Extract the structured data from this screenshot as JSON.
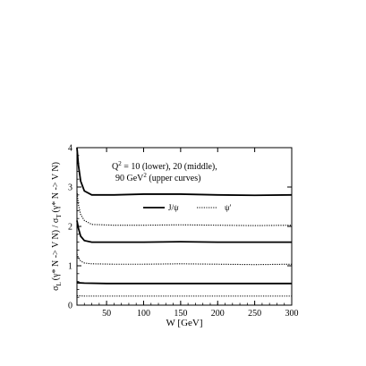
{
  "chart_data": {
    "type": "line",
    "title": "",
    "xlabel": "W  [GeV]",
    "ylabel_parts": {
      "sigma_L": "σ",
      "sub_L": "L",
      "middle": "(γ* N -> V N) / σ",
      "sub_T": "T",
      "tail": "(γ* N -> V N)"
    },
    "xlim": [
      10,
      300
    ],
    "ylim": [
      0,
      4
    ],
    "x_ticks": [
      50,
      100,
      150,
      200,
      250,
      300
    ],
    "y_ticks": [
      0,
      1,
      2,
      3,
      4
    ],
    "annotation": {
      "line1_a": "Q",
      "line1_sup": "2",
      "line1_b": " = 10 (lower), 20 (middle),",
      "line2_a": "90 GeV",
      "line2_sup": "2",
      "line2_b": " (upper curves)"
    },
    "legend": {
      "placement": "upper-right",
      "entries": [
        {
          "label": "J/ψ",
          "style": "solid"
        },
        {
          "label": "ψ'",
          "style": "dotted"
        }
      ]
    },
    "series": [
      {
        "group": "J/ψ, Q² = 90",
        "style": "solid",
        "points": [
          [
            10,
            4.0
          ],
          [
            12,
            3.55
          ],
          [
            15,
            3.15
          ],
          [
            20,
            2.9
          ],
          [
            30,
            2.8
          ],
          [
            60,
            2.8
          ],
          [
            100,
            2.82
          ],
          [
            150,
            2.82
          ],
          [
            200,
            2.8
          ],
          [
            250,
            2.79
          ],
          [
            300,
            2.8
          ]
        ]
      },
      {
        "group": "ψ', Q² = 90",
        "style": "dotted",
        "points": [
          [
            10,
            2.9
          ],
          [
            12,
            2.55
          ],
          [
            15,
            2.3
          ],
          [
            20,
            2.15
          ],
          [
            30,
            2.05
          ],
          [
            60,
            2.03
          ],
          [
            100,
            2.03
          ],
          [
            150,
            2.04
          ],
          [
            200,
            2.03
          ],
          [
            250,
            2.02
          ],
          [
            300,
            2.03
          ]
        ]
      },
      {
        "group": "J/ψ, Q² = 20",
        "style": "solid",
        "points": [
          [
            10,
            2.15
          ],
          [
            12,
            1.95
          ],
          [
            15,
            1.75
          ],
          [
            20,
            1.64
          ],
          [
            30,
            1.6
          ],
          [
            60,
            1.6
          ],
          [
            100,
            1.6
          ],
          [
            150,
            1.61
          ],
          [
            200,
            1.6
          ],
          [
            250,
            1.6
          ],
          [
            300,
            1.6
          ]
        ]
      },
      {
        "group": "ψ', Q² = 20",
        "style": "dotted",
        "points": [
          [
            10,
            1.3
          ],
          [
            12,
            1.2
          ],
          [
            15,
            1.12
          ],
          [
            20,
            1.07
          ],
          [
            30,
            1.05
          ],
          [
            60,
            1.04
          ],
          [
            100,
            1.04
          ],
          [
            150,
            1.05
          ],
          [
            200,
            1.04
          ],
          [
            250,
            1.03
          ],
          [
            300,
            1.04
          ]
        ]
      },
      {
        "group": "J/ψ, Q² = 10",
        "style": "solid",
        "points": [
          [
            10,
            0.57
          ],
          [
            20,
            0.56
          ],
          [
            50,
            0.55
          ],
          [
            100,
            0.55
          ],
          [
            150,
            0.55
          ],
          [
            200,
            0.55
          ],
          [
            250,
            0.55
          ],
          [
            300,
            0.55
          ]
        ]
      },
      {
        "group": "ψ', Q² = 10",
        "style": "dotted",
        "points": [
          [
            10,
            0.24
          ],
          [
            20,
            0.23
          ],
          [
            50,
            0.23
          ],
          [
            100,
            0.23
          ],
          [
            150,
            0.23
          ],
          [
            200,
            0.23
          ],
          [
            250,
            0.23
          ],
          [
            300,
            0.23
          ]
        ]
      }
    ]
  }
}
